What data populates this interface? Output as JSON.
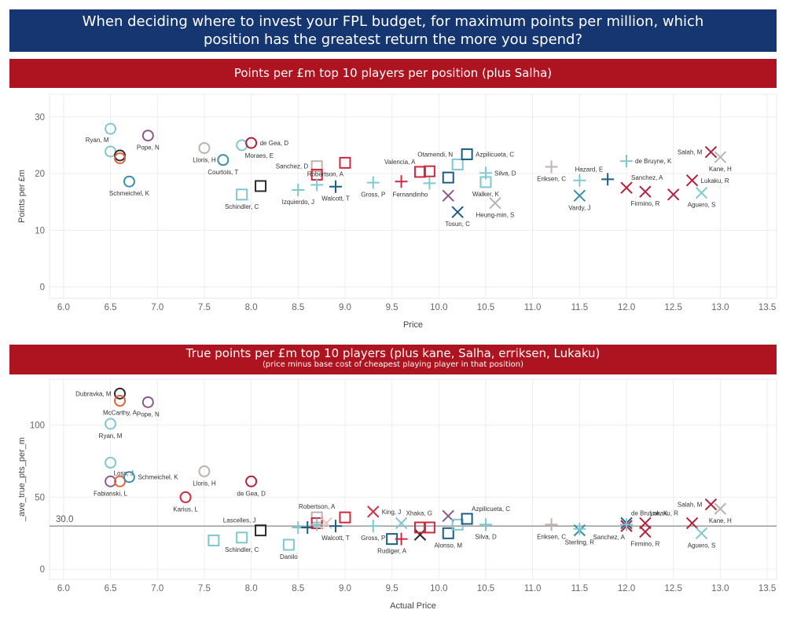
{
  "header": {
    "title_line1": "When deciding where to invest your FPL budget, for maximum points per million, which",
    "title_line2": "position has the greatest return the more you spend?"
  },
  "colors": {
    "title_bg": "#153670",
    "banner_bg": "#ad1420",
    "gk_light_blue": "#7ec8cf",
    "gk_purple": "#8a5a8a",
    "gk_black": "#2b2b2b",
    "gk_orange": "#e8603c",
    "gk_grey": "#bdb3ac",
    "def_teal": "#3a8fa6",
    "def_red": "#d0283c",
    "mid_navy": "#1c5d84",
    "fwd_crimson": "#b51f3c",
    "ref_line": "#999999"
  },
  "legend_note": "Circles = goalkeepers, squares = defenders, plus = midfielders, cross = forwards",
  "chart_data": [
    {
      "type": "scatter",
      "title": "Points per £m top 10 players per position (plus Salha)",
      "xlabel": "Price",
      "ylabel": "Points per £m",
      "xlim": [
        5.85,
        13.6
      ],
      "ylim": [
        -2,
        34
      ],
      "xticks": [
        "6.0",
        "6.5",
        "7.0",
        "7.5",
        "8.0",
        "8.5",
        "9.0",
        "9.5",
        "10.0",
        "10.5",
        "11.0",
        "11.5",
        "12.0",
        "12.5",
        "13.0",
        "13.5"
      ],
      "yticks": [
        0,
        10,
        20,
        30
      ],
      "grid": true,
      "points": [
        {
          "x": 6.5,
          "y": 27.9,
          "shape": "circle",
          "color": "#7ec8cf",
          "label": "Ryan, M",
          "lp": "bl"
        },
        {
          "x": 6.5,
          "y": 23.9,
          "shape": "circle",
          "color": "#7ec8cf",
          "label": "",
          "lp": "r"
        },
        {
          "x": 6.6,
          "y": 23.2,
          "shape": "circle",
          "color": "#2b2b2b",
          "label": "",
          "lp": "r"
        },
        {
          "x": 6.6,
          "y": 22.7,
          "shape": "circle",
          "color": "#e8603c",
          "label": "",
          "lp": "r"
        },
        {
          "x": 6.7,
          "y": 18.6,
          "shape": "circle",
          "color": "#3a8fa6",
          "label": "Schmeichel, K",
          "lp": "b"
        },
        {
          "x": 6.9,
          "y": 26.7,
          "shape": "circle",
          "color": "#8a5a8a",
          "label": "Pope, N",
          "lp": "b"
        },
        {
          "x": 7.5,
          "y": 24.5,
          "shape": "circle",
          "color": "#bdb3ac",
          "label": "Lloris, H",
          "lp": "b"
        },
        {
          "x": 7.7,
          "y": 22.4,
          "shape": "circle",
          "color": "#3a8fa6",
          "label": "Courtois, T",
          "lp": "b"
        },
        {
          "x": 7.9,
          "y": 25.0,
          "shape": "circle",
          "color": "#7ec8cf",
          "label": "Moraes, E",
          "lp": "br"
        },
        {
          "x": 8.0,
          "y": 25.4,
          "shape": "circle",
          "color": "#b51f3c",
          "label": "de Gea, D",
          "lp": "r"
        },
        {
          "x": 7.9,
          "y": 16.3,
          "shape": "square",
          "color": "#7ec8cf",
          "label": "Schindler, C",
          "lp": "b"
        },
        {
          "x": 8.1,
          "y": 17.8,
          "shape": "square",
          "color": "#2b2b2b",
          "label": "",
          "lp": "r"
        },
        {
          "x": 8.7,
          "y": 21.3,
          "shape": "square",
          "color": "#bdb3ac",
          "label": "Sanchez, D",
          "lp": "l"
        },
        {
          "x": 8.7,
          "y": 19.8,
          "shape": "square",
          "color": "#d0283c",
          "label": "",
          "lp": "r"
        },
        {
          "x": 9.0,
          "y": 21.9,
          "shape": "square",
          "color": "#d0283c",
          "label": "Robertson, A",
          "lp": "bl"
        },
        {
          "x": 8.5,
          "y": 17.1,
          "shape": "plus",
          "color": "#7ec8cf",
          "label": "Izquierdo, J",
          "lp": "b"
        },
        {
          "x": 8.7,
          "y": 18.0,
          "shape": "plus",
          "color": "#7ec8cf",
          "label": "",
          "lp": "r"
        },
        {
          "x": 8.9,
          "y": 17.7,
          "shape": "plus",
          "color": "#1c5d84",
          "label": "Walcott, T",
          "lp": "b"
        },
        {
          "x": 9.3,
          "y": 18.4,
          "shape": "plus",
          "color": "#7ec8cf",
          "label": "Gross, P",
          "lp": "b"
        },
        {
          "x": 9.6,
          "y": 18.6,
          "shape": "plus",
          "color": "#d0283c",
          "label": "",
          "lp": "r"
        },
        {
          "x": 9.8,
          "y": 20.3,
          "shape": "square",
          "color": "#d0283c",
          "label": "Valencia, A",
          "lp": "tl"
        },
        {
          "x": 9.9,
          "y": 20.4,
          "shape": "square",
          "color": "#d0283c",
          "label": "",
          "lp": "r"
        },
        {
          "x": 9.9,
          "y": 18.3,
          "shape": "plus",
          "color": "#7ec8cf",
          "label": "Fernandinho",
          "lp": "bl"
        },
        {
          "x": 10.1,
          "y": 19.3,
          "shape": "square",
          "color": "#1c5d84",
          "label": "",
          "lp": "r"
        },
        {
          "x": 10.2,
          "y": 21.6,
          "shape": "square",
          "color": "#7ec8cf",
          "label": "Otamendi, N",
          "lp": "tl"
        },
        {
          "x": 10.3,
          "y": 23.4,
          "shape": "square",
          "color": "#1c5d84",
          "label": "Azpilicueta, C",
          "lp": "r"
        },
        {
          "x": 10.1,
          "y": 16.1,
          "shape": "cross",
          "color": "#8a5a8a",
          "label": "",
          "lp": "r"
        },
        {
          "x": 10.2,
          "y": 13.2,
          "shape": "cross",
          "color": "#1c5d84",
          "label": "Tosun, C",
          "lp": "b"
        },
        {
          "x": 10.5,
          "y": 20.1,
          "shape": "plus",
          "color": "#7ec8cf",
          "label": "Silva, D",
          "lp": "r"
        },
        {
          "x": 10.5,
          "y": 18.5,
          "shape": "square",
          "color": "#7ec8cf",
          "label": "Walker, K",
          "lp": "b"
        },
        {
          "x": 10.6,
          "y": 14.8,
          "shape": "cross",
          "color": "#bdb3ac",
          "label": "Heung-min, S",
          "lp": "b"
        },
        {
          "x": 11.2,
          "y": 21.2,
          "shape": "plus",
          "color": "#bdb3ac",
          "label": "Eriksen, C",
          "lp": "b"
        },
        {
          "x": 11.5,
          "y": 18.8,
          "shape": "plus",
          "color": "#7ec8cf",
          "label": "",
          "lp": "r"
        },
        {
          "x": 11.5,
          "y": 16.1,
          "shape": "cross",
          "color": "#3a8fa6",
          "label": "Vardy, J",
          "lp": "b"
        },
        {
          "x": 11.8,
          "y": 19.0,
          "shape": "plus",
          "color": "#1c5d84",
          "label": "Hazard, E",
          "lp": "tl"
        },
        {
          "x": 12.0,
          "y": 22.2,
          "shape": "plus",
          "color": "#7ec8cf",
          "label": "de Bruyne, K",
          "lp": "r"
        },
        {
          "x": 12.0,
          "y": 17.5,
          "shape": "cross",
          "color": "#b51f3c",
          "label": "Sanchez, A",
          "lp": "tr"
        },
        {
          "x": 12.2,
          "y": 16.8,
          "shape": "cross",
          "color": "#b51f3c",
          "label": "Firmino, R",
          "lp": "b"
        },
        {
          "x": 12.5,
          "y": 16.3,
          "shape": "cross",
          "color": "#b51f3c",
          "label": "",
          "lp": "r"
        },
        {
          "x": 12.7,
          "y": 18.8,
          "shape": "cross",
          "color": "#b51f3c",
          "label": "Lukaku, R",
          "lp": "r"
        },
        {
          "x": 12.8,
          "y": 16.6,
          "shape": "cross",
          "color": "#7ec8cf",
          "label": "Aguero, S",
          "lp": "b"
        },
        {
          "x": 12.9,
          "y": 23.8,
          "shape": "cross",
          "color": "#b51f3c",
          "label": "Salah, M",
          "lp": "l"
        },
        {
          "x": 13.0,
          "y": 22.9,
          "shape": "cross",
          "color": "#bdb3ac",
          "label": "Kane, H",
          "lp": "b"
        }
      ]
    },
    {
      "type": "scatter",
      "title": "True points per £m top 10 players (plus kane, Salha, erriksen, Lukaku)",
      "subtitle": "(price minus base cost of cheapest playing player in that position)",
      "xlabel": "Actual Price",
      "ylabel": "_ave_true_pts_per_m",
      "xlim": [
        5.85,
        13.6
      ],
      "ylim": [
        -7,
        132
      ],
      "xticks": [
        "6.0",
        "6.5",
        "7.0",
        "7.5",
        "8.0",
        "8.5",
        "9.0",
        "9.5",
        "10.0",
        "10.5",
        "11.0",
        "11.5",
        "12.0",
        "12.5",
        "13.0",
        "13.5"
      ],
      "yticks": [
        0,
        50,
        100
      ],
      "grid": true,
      "ref_line": {
        "value": 30,
        "label": "30.0"
      },
      "points": [
        {
          "x": 6.6,
          "y": 122,
          "shape": "circle",
          "color": "#2b2b2b",
          "label": "Dubravka, M",
          "lp": "l"
        },
        {
          "x": 6.6,
          "y": 117,
          "shape": "circle",
          "color": "#e8603c",
          "label": "McCarthy, A",
          "lp": "b"
        },
        {
          "x": 6.9,
          "y": 116,
          "shape": "circle",
          "color": "#8a5a8a",
          "label": "Pope, N",
          "lp": "b"
        },
        {
          "x": 6.5,
          "y": 101,
          "shape": "circle",
          "color": "#7ec8cf",
          "label": "Ryan, M",
          "lp": "b"
        },
        {
          "x": 6.5,
          "y": 74,
          "shape": "circle",
          "color": "#7ec8cf",
          "label": "Loss, J",
          "lp": "br"
        },
        {
          "x": 6.5,
          "y": 61,
          "shape": "circle",
          "color": "#8a5a8a",
          "label": "Fabianski, L",
          "lp": "b"
        },
        {
          "x": 6.6,
          "y": 61,
          "shape": "circle",
          "color": "#e8603c",
          "label": "",
          "lp": "r"
        },
        {
          "x": 6.7,
          "y": 64,
          "shape": "circle",
          "color": "#3a8fa6",
          "label": "Schmeichel, K",
          "lp": "r"
        },
        {
          "x": 7.3,
          "y": 50,
          "shape": "circle",
          "color": "#d0283c",
          "label": "Karius, L",
          "lp": "b"
        },
        {
          "x": 7.5,
          "y": 68,
          "shape": "circle",
          "color": "#bdb3ac",
          "label": "Lloris, H",
          "lp": "b"
        },
        {
          "x": 8.0,
          "y": 61,
          "shape": "circle",
          "color": "#b51f3c",
          "label": "de Gea, D",
          "lp": "b"
        },
        {
          "x": 7.6,
          "y": 20,
          "shape": "square",
          "color": "#7ec8cf",
          "label": "",
          "lp": "r"
        },
        {
          "x": 7.9,
          "y": 22,
          "shape": "square",
          "color": "#7ec8cf",
          "label": "Schindler, C",
          "lp": "b"
        },
        {
          "x": 8.1,
          "y": 27,
          "shape": "square",
          "color": "#2b2b2b",
          "label": "Lascelles, J",
          "lp": "tl"
        },
        {
          "x": 8.4,
          "y": 17,
          "shape": "square",
          "color": "#7ec8cf",
          "label": "Danilo",
          "lp": "b"
        },
        {
          "x": 8.5,
          "y": 29,
          "shape": "plus",
          "color": "#7ec8cf",
          "label": "",
          "lp": "r"
        },
        {
          "x": 8.6,
          "y": 29,
          "shape": "plus",
          "color": "#1c5d84",
          "label": "",
          "lp": "r"
        },
        {
          "x": 8.7,
          "y": 36,
          "shape": "square",
          "color": "#bdb3ac",
          "label": "Robertson, A",
          "lp": "t"
        },
        {
          "x": 8.7,
          "y": 32,
          "shape": "square",
          "color": "#d0283c",
          "label": "",
          "lp": "r"
        },
        {
          "x": 8.7,
          "y": 31,
          "shape": "plus",
          "color": "#7ec8cf",
          "label": "",
          "lp": "r"
        },
        {
          "x": 8.8,
          "y": 32,
          "shape": "cross",
          "color": "#f0c0c0",
          "label": "",
          "lp": "r"
        },
        {
          "x": 8.9,
          "y": 30,
          "shape": "plus",
          "color": "#1c5d84",
          "label": "Walcott, T",
          "lp": "b"
        },
        {
          "x": 9.0,
          "y": 36,
          "shape": "square",
          "color": "#d0283c",
          "label": "",
          "lp": "r"
        },
        {
          "x": 9.3,
          "y": 40,
          "shape": "cross",
          "color": "#d0283c",
          "label": "King, J",
          "lp": "r"
        },
        {
          "x": 9.3,
          "y": 30,
          "shape": "plus",
          "color": "#7ec8cf",
          "label": "Gross, P",
          "lp": "b"
        },
        {
          "x": 9.5,
          "y": 21,
          "shape": "square",
          "color": "#1c5d84",
          "label": "Rudiger, A",
          "lp": "b"
        },
        {
          "x": 9.6,
          "y": 32,
          "shape": "cross",
          "color": "#7ec8cf",
          "label": "Xhaka, G",
          "lp": "tr"
        },
        {
          "x": 9.6,
          "y": 21,
          "shape": "plus",
          "color": "#d0283c",
          "label": "",
          "lp": "r"
        },
        {
          "x": 9.8,
          "y": 24,
          "shape": "cross",
          "color": "#2b2b2b",
          "label": "",
          "lp": "r"
        },
        {
          "x": 9.8,
          "y": 29,
          "shape": "square",
          "color": "#d0283c",
          "label": "",
          "lp": "r"
        },
        {
          "x": 9.9,
          "y": 29,
          "shape": "square",
          "color": "#d0283c",
          "label": "",
          "lp": "r"
        },
        {
          "x": 10.1,
          "y": 25,
          "shape": "square",
          "color": "#1c5d84",
          "label": "Alonso, M",
          "lp": "b"
        },
        {
          "x": 10.1,
          "y": 37,
          "shape": "cross",
          "color": "#8a5a8a",
          "label": "",
          "lp": "r"
        },
        {
          "x": 10.2,
          "y": 31,
          "shape": "square",
          "color": "#7ec8cf",
          "label": "",
          "lp": "r"
        },
        {
          "x": 10.3,
          "y": 35,
          "shape": "square",
          "color": "#1c5d84",
          "label": "Azpilicueta, C",
          "lp": "tr"
        },
        {
          "x": 10.5,
          "y": 31,
          "shape": "plus",
          "color": "#7ec8cf",
          "label": "Silva, D",
          "lp": "b"
        },
        {
          "x": 11.2,
          "y": 31,
          "shape": "plus",
          "color": "#bdb3ac",
          "label": "Eriksen, C",
          "lp": "b"
        },
        {
          "x": 11.5,
          "y": 27,
          "shape": "cross",
          "color": "#3a8fa6",
          "label": "Sterling, R",
          "lp": "b"
        },
        {
          "x": 11.5,
          "y": 28,
          "shape": "plus",
          "color": "#7ec8cf",
          "label": "",
          "lp": "r"
        },
        {
          "x": 12.0,
          "y": 32,
          "shape": "cross",
          "color": "#1c5d84",
          "label": "de Bruyne, K",
          "lp": "tr"
        },
        {
          "x": 12.0,
          "y": 30,
          "shape": "cross",
          "color": "#b51f3c",
          "label": "Sanchez, A",
          "lp": "bl"
        },
        {
          "x": 12.0,
          "y": 31,
          "shape": "plus",
          "color": "#7ec8cf",
          "label": "",
          "lp": "r"
        },
        {
          "x": 12.2,
          "y": 26,
          "shape": "cross",
          "color": "#b51f3c",
          "label": "Firmino, R",
          "lp": "b"
        },
        {
          "x": 12.2,
          "y": 32,
          "shape": "cross",
          "color": "#b51f3c",
          "label": "Lukaku, R",
          "lp": "tr"
        },
        {
          "x": 12.7,
          "y": 32,
          "shape": "cross",
          "color": "#b51f3c",
          "label": "",
          "lp": "r"
        },
        {
          "x": 12.8,
          "y": 25,
          "shape": "cross",
          "color": "#7ec8cf",
          "label": "Aguero, S",
          "lp": "b"
        },
        {
          "x": 12.9,
          "y": 45,
          "shape": "cross",
          "color": "#b51f3c",
          "label": "Salah, M",
          "lp": "l"
        },
        {
          "x": 13.0,
          "y": 42,
          "shape": "cross",
          "color": "#bdb3ac",
          "label": "Kane, H",
          "lp": "b"
        }
      ]
    }
  ]
}
